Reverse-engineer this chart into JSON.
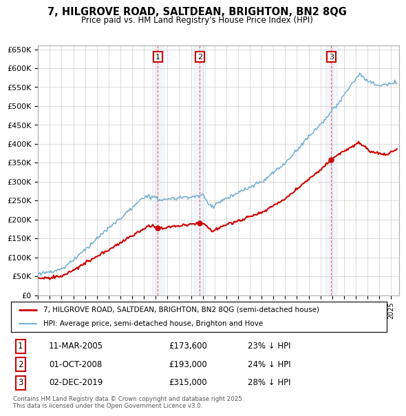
{
  "title": "7, HILGROVE ROAD, SALTDEAN, BRIGHTON, BN2 8QG",
  "subtitle": "Price paid vs. HM Land Registry's House Price Index (HPI)",
  "ylabel_ticks": [
    "£0",
    "£50K",
    "£100K",
    "£150K",
    "£200K",
    "£250K",
    "£300K",
    "£350K",
    "£400K",
    "£450K",
    "£500K",
    "£550K",
    "£600K",
    "£650K"
  ],
  "ytick_values": [
    0,
    50000,
    100000,
    150000,
    200000,
    250000,
    300000,
    350000,
    400000,
    450000,
    500000,
    550000,
    600000,
    650000
  ],
  "xlim_start": 1995.0,
  "xlim_end": 2025.7,
  "ylim_min": 0,
  "ylim_max": 660000,
  "transactions": [
    {
      "date": 2005.19,
      "price": 173600,
      "label": "1"
    },
    {
      "date": 2008.75,
      "price": 193000,
      "label": "2"
    },
    {
      "date": 2019.92,
      "price": 315000,
      "label": "3"
    }
  ],
  "legend_entries": [
    {
      "label": "7, HILGROVE ROAD, SALTDEAN, BRIGHTON, BN2 8QG (semi-detached house)",
      "color": "#cc0000",
      "lw": 1.5
    },
    {
      "label": "HPI: Average price, semi-detached house, Brighton and Hove",
      "color": "#7ab0d4",
      "lw": 1.2
    }
  ],
  "table_entries": [
    {
      "num": "1",
      "date": "11-MAR-2005",
      "price": "£173,600",
      "note": "23% ↓ HPI"
    },
    {
      "num": "2",
      "date": "01-OCT-2008",
      "price": "£193,000",
      "note": "24% ↓ HPI"
    },
    {
      "num": "3",
      "date": "02-DEC-2019",
      "price": "£315,000",
      "note": "28% ↓ HPI"
    }
  ],
  "footer": "Contains HM Land Registry data © Crown copyright and database right 2025.\nThis data is licensed under the Open Government Licence v3.0.",
  "background_color": "#ffffff",
  "grid_color": "#cccccc",
  "plot_bg_color": "#ffffff",
  "transaction_box_color": "#cc0000",
  "vline_color": "#cc0000",
  "shade_color": "#ccddf0"
}
